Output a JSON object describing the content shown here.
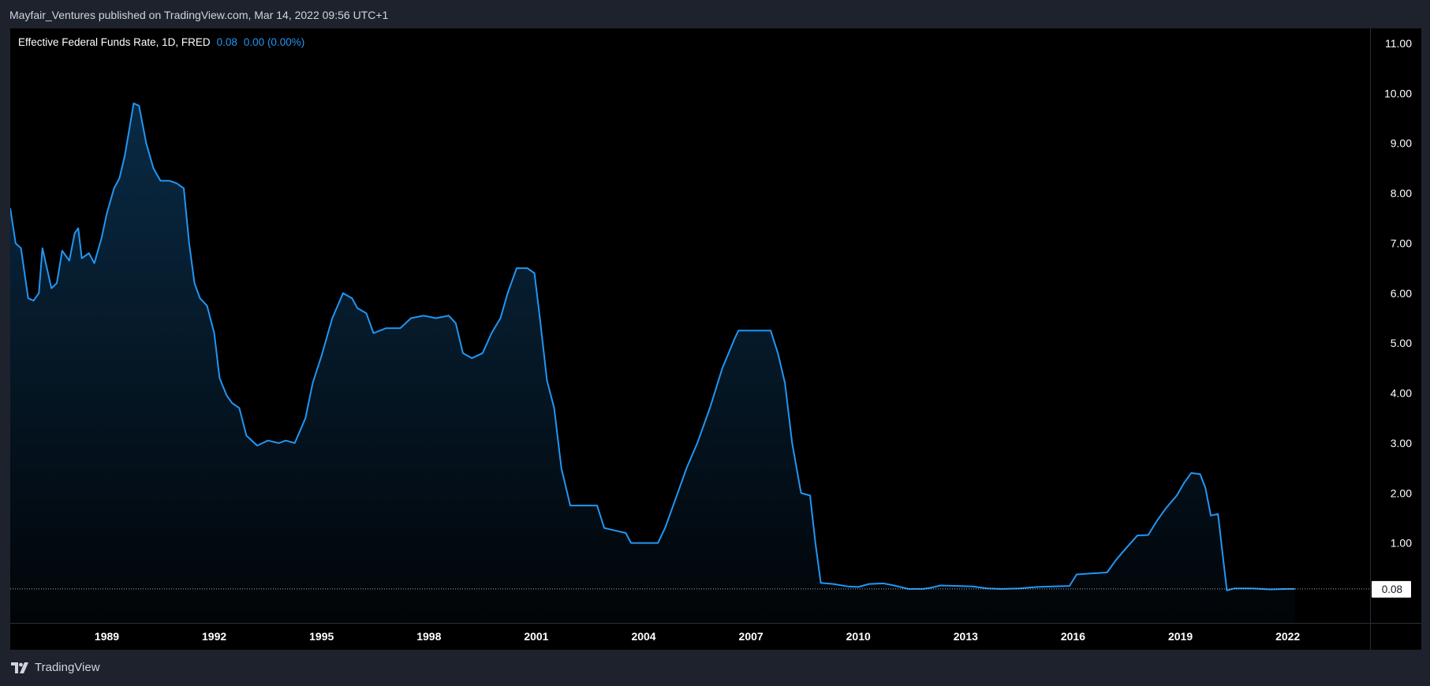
{
  "header": {
    "published_by": "Mayfair_Ventures published on TradingView.com, Mar 14, 2022 09:56 UTC+1"
  },
  "legend": {
    "title": "Effective Federal Funds Rate, 1D, FRED",
    "value": "0.08",
    "change": "0.00",
    "change_pct": "(0.00%)"
  },
  "footer": {
    "brand": "TradingView",
    "logo_icon": "tradingview-logo-icon"
  },
  "colors": {
    "background": "#1e222d",
    "chart_background": "#000000",
    "line": "#2196f3",
    "text": "#d1d4dc"
  },
  "chart_data": {
    "type": "area",
    "title": "Effective Federal Funds Rate, 1D, FRED",
    "xlabel": "",
    "ylabel": "",
    "xlim": [
      1986.3,
      2024.3
    ],
    "ylim": [
      -0.6,
      11.3
    ],
    "x_ticks": [
      1989,
      1992,
      1995,
      1998,
      2001,
      2004,
      2007,
      2010,
      2013,
      2016,
      2019,
      2022
    ],
    "x_tick_labels": [
      "1989",
      "1992",
      "1995",
      "1998",
      "2001",
      "2004",
      "2007",
      "2010",
      "2013",
      "2016",
      "2019",
      "2022"
    ],
    "y_ticks": [
      1,
      2,
      3,
      4,
      5,
      6,
      7,
      8,
      9,
      10,
      11
    ],
    "y_tick_labels": [
      "1.00",
      "2.00",
      "3.00",
      "4.00",
      "5.00",
      "6.00",
      "7.00",
      "8.00",
      "9.00",
      "10.00",
      "11.00"
    ],
    "last_value": 0.08,
    "last_value_label": "0.08",
    "grid": false,
    "series": [
      {
        "points": [
          [
            1986.3,
            7.7
          ],
          [
            1986.45,
            7.0
          ],
          [
            1986.6,
            6.9
          ],
          [
            1986.8,
            5.9
          ],
          [
            1986.95,
            5.85
          ],
          [
            1987.1,
            6.0
          ],
          [
            1987.2,
            6.9
          ],
          [
            1987.45,
            6.1
          ],
          [
            1987.6,
            6.2
          ],
          [
            1987.75,
            6.85
          ],
          [
            1987.95,
            6.65
          ],
          [
            1988.1,
            7.2
          ],
          [
            1988.2,
            7.3
          ],
          [
            1988.3,
            6.7
          ],
          [
            1988.5,
            6.8
          ],
          [
            1988.65,
            6.6
          ],
          [
            1988.85,
            7.1
          ],
          [
            1989.0,
            7.6
          ],
          [
            1989.2,
            8.1
          ],
          [
            1989.35,
            8.3
          ],
          [
            1989.5,
            8.75
          ],
          [
            1989.75,
            9.8
          ],
          [
            1989.9,
            9.75
          ],
          [
            1990.1,
            9.0
          ],
          [
            1990.3,
            8.5
          ],
          [
            1990.5,
            8.25
          ],
          [
            1990.75,
            8.25
          ],
          [
            1990.95,
            8.2
          ],
          [
            1991.15,
            8.1
          ],
          [
            1991.3,
            7.0
          ],
          [
            1991.45,
            6.2
          ],
          [
            1991.6,
            5.9
          ],
          [
            1991.8,
            5.75
          ],
          [
            1992.0,
            5.2
          ],
          [
            1992.15,
            4.3
          ],
          [
            1992.35,
            3.95
          ],
          [
            1992.5,
            3.8
          ],
          [
            1992.7,
            3.7
          ],
          [
            1992.9,
            3.15
          ],
          [
            1993.2,
            2.95
          ],
          [
            1993.5,
            3.05
          ],
          [
            1993.8,
            3.0
          ],
          [
            1994.0,
            3.05
          ],
          [
            1994.25,
            3.0
          ],
          [
            1994.55,
            3.5
          ],
          [
            1994.75,
            4.2
          ],
          [
            1995.0,
            4.75
          ],
          [
            1995.3,
            5.5
          ],
          [
            1995.6,
            6.0
          ],
          [
            1995.85,
            5.9
          ],
          [
            1996.0,
            5.7
          ],
          [
            1996.25,
            5.6
          ],
          [
            1996.45,
            5.2
          ],
          [
            1996.8,
            5.3
          ],
          [
            1997.2,
            5.3
          ],
          [
            1997.5,
            5.5
          ],
          [
            1997.85,
            5.55
          ],
          [
            1998.2,
            5.5
          ],
          [
            1998.55,
            5.55
          ],
          [
            1998.75,
            5.4
          ],
          [
            1998.95,
            4.8
          ],
          [
            1999.2,
            4.7
          ],
          [
            1999.5,
            4.8
          ],
          [
            1999.75,
            5.2
          ],
          [
            2000.0,
            5.5
          ],
          [
            2000.2,
            6.0
          ],
          [
            2000.45,
            6.5
          ],
          [
            2000.75,
            6.5
          ],
          [
            2000.95,
            6.4
          ],
          [
            2001.1,
            5.5
          ],
          [
            2001.3,
            4.25
          ],
          [
            2001.5,
            3.7
          ],
          [
            2001.7,
            2.5
          ],
          [
            2001.95,
            1.75
          ],
          [
            2002.3,
            1.75
          ],
          [
            2002.7,
            1.75
          ],
          [
            2002.9,
            1.3
          ],
          [
            2003.2,
            1.25
          ],
          [
            2003.5,
            1.2
          ],
          [
            2003.65,
            1.0
          ],
          [
            2004.0,
            1.0
          ],
          [
            2004.4,
            1.0
          ],
          [
            2004.6,
            1.3
          ],
          [
            2004.9,
            1.9
          ],
          [
            2005.2,
            2.5
          ],
          [
            2005.5,
            3.0
          ],
          [
            2005.85,
            3.7
          ],
          [
            2006.2,
            4.5
          ],
          [
            2006.55,
            5.1
          ],
          [
            2006.65,
            5.25
          ],
          [
            2007.0,
            5.25
          ],
          [
            2007.55,
            5.25
          ],
          [
            2007.75,
            4.8
          ],
          [
            2007.95,
            4.2
          ],
          [
            2008.15,
            3.0
          ],
          [
            2008.4,
            2.0
          ],
          [
            2008.65,
            1.95
          ],
          [
            2008.8,
            1.0
          ],
          [
            2008.95,
            0.2
          ],
          [
            2009.3,
            0.18
          ],
          [
            2009.7,
            0.13
          ],
          [
            2010.0,
            0.12
          ],
          [
            2010.3,
            0.18
          ],
          [
            2010.7,
            0.19
          ],
          [
            2011.0,
            0.15
          ],
          [
            2011.4,
            0.08
          ],
          [
            2011.8,
            0.08
          ],
          [
            2012.0,
            0.1
          ],
          [
            2012.3,
            0.15
          ],
          [
            2012.8,
            0.14
          ],
          [
            2013.2,
            0.13
          ],
          [
            2013.6,
            0.09
          ],
          [
            2014.0,
            0.08
          ],
          [
            2014.5,
            0.09
          ],
          [
            2015.0,
            0.12
          ],
          [
            2015.4,
            0.13
          ],
          [
            2015.9,
            0.14
          ],
          [
            2016.1,
            0.37
          ],
          [
            2016.5,
            0.39
          ],
          [
            2016.95,
            0.41
          ],
          [
            2017.2,
            0.66
          ],
          [
            2017.5,
            0.91
          ],
          [
            2017.8,
            1.15
          ],
          [
            2018.1,
            1.16
          ],
          [
            2018.35,
            1.45
          ],
          [
            2018.6,
            1.7
          ],
          [
            2018.9,
            1.95
          ],
          [
            2019.1,
            2.2
          ],
          [
            2019.3,
            2.4
          ],
          [
            2019.55,
            2.38
          ],
          [
            2019.7,
            2.1
          ],
          [
            2019.85,
            1.55
          ],
          [
            2020.05,
            1.58
          ],
          [
            2020.2,
            0.65
          ],
          [
            2020.3,
            0.05
          ],
          [
            2020.5,
            0.09
          ],
          [
            2021.0,
            0.09
          ],
          [
            2021.5,
            0.07
          ],
          [
            2022.0,
            0.08
          ],
          [
            2022.2,
            0.08
          ]
        ]
      }
    ]
  }
}
